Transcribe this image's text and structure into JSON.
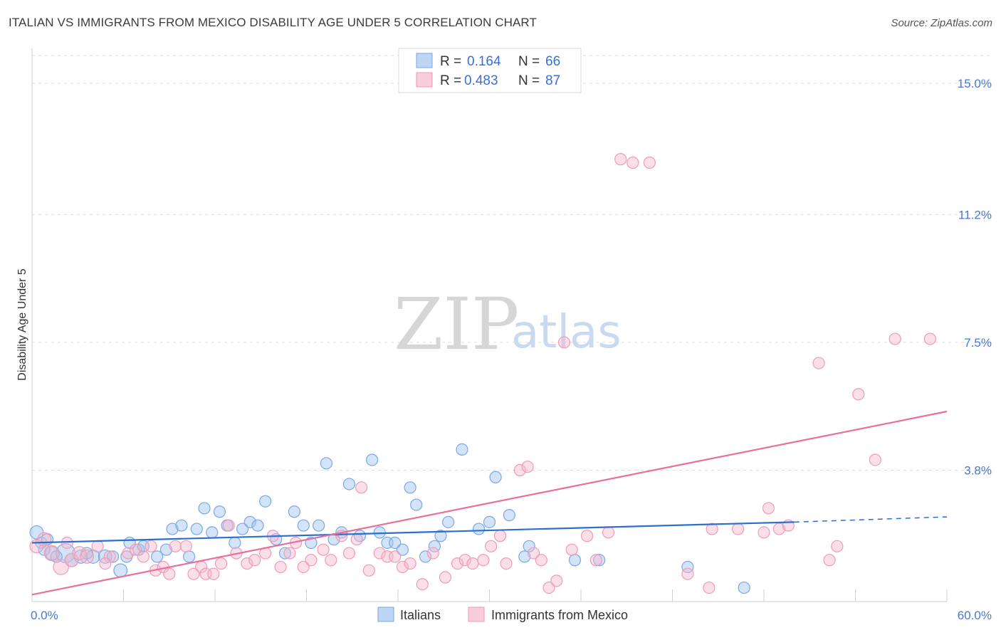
{
  "chart_data": {
    "type": "scatter",
    "title": "ITALIAN VS IMMIGRANTS FROM MEXICO DISABILITY AGE UNDER 5 CORRELATION CHART",
    "source": "Source: ZipAtlas.com",
    "xlabel": "",
    "ylabel": "Disability Age Under 5",
    "xlim": [
      0,
      60
    ],
    "ylim": [
      0,
      15.8
    ],
    "x_tick_labels": [
      {
        "value": 0,
        "label": "0.0%"
      },
      {
        "value": 60,
        "label": "60.0%"
      }
    ],
    "y_tick_labels": [
      {
        "value": 3.8,
        "label": "3.8%"
      },
      {
        "value": 7.5,
        "label": "7.5%"
      },
      {
        "value": 11.2,
        "label": "11.2%"
      },
      {
        "value": 15.0,
        "label": "15.0%"
      }
    ],
    "grid": true,
    "watermark": {
      "zip": "ZIP",
      "atlas": "atlas"
    },
    "legend": {
      "placement": "top-center",
      "rows": [
        {
          "r_label": "R =",
          "r_value": "0.164",
          "n_label": "N =",
          "n_value": "66"
        },
        {
          "r_label": "R =",
          "r_value": "0.483",
          "n_label": "N =",
          "n_value": "87"
        }
      ]
    },
    "bottom_legend": [
      "Italians",
      "Immigrants from Mexico"
    ],
    "series": [
      {
        "name": "Italians",
        "color": "#7aa7e6",
        "fill": "rgba(160,196,240,0.45)",
        "line_color": "#2b6fd0",
        "trend": {
          "x0": 0,
          "y0": 1.7,
          "x1": 50,
          "y1": 2.3,
          "dash_to_x": 60,
          "dash_to_y": 2.45
        },
        "points": [
          [
            0.3,
            2.0,
            14
          ],
          [
            0.6,
            1.7,
            12
          ],
          [
            1.0,
            1.8,
            12
          ],
          [
            1.3,
            1.4,
            14
          ],
          [
            2.2,
            1.4,
            20
          ],
          [
            2.6,
            1.2,
            14
          ],
          [
            3.2,
            1.3,
            14
          ],
          [
            4.0,
            1.3,
            14
          ],
          [
            4.8,
            1.3,
            14
          ],
          [
            5.3,
            1.3,
            12
          ],
          [
            5.8,
            0.9,
            14
          ],
          [
            6.2,
            1.3,
            12
          ],
          [
            6.4,
            1.7,
            12
          ],
          [
            7.0,
            1.5,
            12
          ],
          [
            7.3,
            1.6,
            12
          ],
          [
            8.2,
            1.3,
            12
          ],
          [
            8.8,
            1.5,
            12
          ],
          [
            9.2,
            2.1,
            12
          ],
          [
            9.8,
            2.2,
            12
          ],
          [
            10.3,
            1.3,
            12
          ],
          [
            10.8,
            2.1,
            12
          ],
          [
            11.3,
            2.7,
            12
          ],
          [
            11.8,
            2.0,
            12
          ],
          [
            12.3,
            2.6,
            12
          ],
          [
            12.8,
            2.2,
            12
          ],
          [
            13.3,
            1.7,
            12
          ],
          [
            13.8,
            2.1,
            12
          ],
          [
            14.3,
            2.3,
            12
          ],
          [
            14.8,
            2.2,
            12
          ],
          [
            15.3,
            2.9,
            12
          ],
          [
            16.0,
            1.8,
            12
          ],
          [
            16.6,
            1.4,
            12
          ],
          [
            17.2,
            2.6,
            12
          ],
          [
            17.8,
            2.2,
            12
          ],
          [
            18.3,
            1.7,
            12
          ],
          [
            18.8,
            2.2,
            12
          ],
          [
            19.3,
            4.0,
            12
          ],
          [
            19.8,
            1.8,
            12
          ],
          [
            20.3,
            2.0,
            12
          ],
          [
            20.8,
            3.4,
            12
          ],
          [
            21.5,
            1.9,
            12
          ],
          [
            22.3,
            4.1,
            12
          ],
          [
            22.8,
            2.0,
            12
          ],
          [
            23.3,
            1.7,
            12
          ],
          [
            23.8,
            1.7,
            12
          ],
          [
            24.3,
            1.5,
            12
          ],
          [
            24.8,
            3.3,
            12
          ],
          [
            25.2,
            2.8,
            12
          ],
          [
            25.8,
            1.3,
            12
          ],
          [
            26.4,
            1.6,
            12
          ],
          [
            26.8,
            1.9,
            12
          ],
          [
            27.3,
            2.3,
            12
          ],
          [
            28.2,
            4.4,
            12
          ],
          [
            29.3,
            2.1,
            12
          ],
          [
            30.0,
            2.3,
            12
          ],
          [
            30.4,
            3.6,
            12
          ],
          [
            31.3,
            2.5,
            12
          ],
          [
            32.3,
            1.3,
            12
          ],
          [
            32.6,
            1.6,
            12
          ],
          [
            35.6,
            1.2,
            12
          ],
          [
            37.2,
            1.2,
            12
          ],
          [
            43.0,
            1.0,
            12
          ],
          [
            46.7,
            0.4,
            12
          ],
          [
            0.8,
            1.5,
            12
          ],
          [
            1.6,
            1.3,
            12
          ],
          [
            3.6,
            1.4,
            12
          ]
        ]
      },
      {
        "name": "Immigrants from Mexico",
        "color": "#ee9cb5",
        "fill": "rgba(246,183,203,0.45)",
        "line_color": "#e8709a",
        "trend": {
          "x0": 0,
          "y0": 0.2,
          "x1": 60,
          "y1": 5.5
        },
        "points": [
          [
            0.3,
            1.6,
            14
          ],
          [
            0.8,
            1.8,
            14
          ],
          [
            1.3,
            1.4,
            16
          ],
          [
            1.9,
            1.0,
            16
          ],
          [
            2.6,
            1.2,
            14
          ],
          [
            3.1,
            1.4,
            14
          ],
          [
            3.6,
            1.3,
            14
          ],
          [
            4.3,
            1.6,
            12
          ],
          [
            5.1,
            1.3,
            12
          ],
          [
            6.3,
            1.4,
            12
          ],
          [
            6.8,
            1.5,
            12
          ],
          [
            7.3,
            1.3,
            12
          ],
          [
            7.8,
            1.6,
            12
          ],
          [
            8.1,
            0.9,
            12
          ],
          [
            8.6,
            1.0,
            12
          ],
          [
            9.0,
            0.8,
            12
          ],
          [
            9.4,
            1.6,
            12
          ],
          [
            10.1,
            1.6,
            12
          ],
          [
            10.6,
            0.8,
            12
          ],
          [
            11.1,
            1.0,
            12
          ],
          [
            11.4,
            0.8,
            12
          ],
          [
            11.9,
            0.8,
            12
          ],
          [
            12.4,
            1.1,
            12
          ],
          [
            12.9,
            2.2,
            12
          ],
          [
            13.4,
            1.4,
            12
          ],
          [
            14.1,
            1.1,
            12
          ],
          [
            14.6,
            1.2,
            12
          ],
          [
            15.3,
            1.4,
            12
          ],
          [
            15.8,
            1.9,
            12
          ],
          [
            16.3,
            1.0,
            12
          ],
          [
            16.9,
            1.4,
            12
          ],
          [
            17.3,
            1.7,
            12
          ],
          [
            17.8,
            1.0,
            12
          ],
          [
            18.3,
            1.2,
            12
          ],
          [
            19.1,
            1.5,
            12
          ],
          [
            19.6,
            1.2,
            12
          ],
          [
            20.3,
            1.9,
            12
          ],
          [
            20.8,
            1.4,
            12
          ],
          [
            21.3,
            1.8,
            12
          ],
          [
            21.6,
            3.3,
            12
          ],
          [
            22.1,
            0.9,
            12
          ],
          [
            22.8,
            1.4,
            12
          ],
          [
            23.3,
            1.3,
            12
          ],
          [
            23.8,
            1.3,
            12
          ],
          [
            24.3,
            1.0,
            12
          ],
          [
            24.8,
            1.1,
            12
          ],
          [
            25.6,
            0.5,
            12
          ],
          [
            26.3,
            1.4,
            12
          ],
          [
            27.1,
            0.7,
            12
          ],
          [
            27.9,
            1.1,
            12
          ],
          [
            28.4,
            1.2,
            12
          ],
          [
            28.9,
            1.1,
            12
          ],
          [
            29.6,
            1.2,
            12
          ],
          [
            30.1,
            1.6,
            12
          ],
          [
            30.7,
            1.9,
            12
          ],
          [
            31.1,
            1.1,
            12
          ],
          [
            32.0,
            3.8,
            12
          ],
          [
            32.5,
            3.9,
            12
          ],
          [
            32.9,
            1.4,
            12
          ],
          [
            33.4,
            1.2,
            12
          ],
          [
            33.9,
            0.4,
            12
          ],
          [
            34.4,
            0.6,
            12
          ],
          [
            34.9,
            7.5,
            12
          ],
          [
            35.4,
            1.5,
            12
          ],
          [
            36.4,
            1.9,
            12
          ],
          [
            37.0,
            1.2,
            12
          ],
          [
            37.8,
            2.0,
            12
          ],
          [
            38.6,
            12.8,
            12
          ],
          [
            39.4,
            12.7,
            12
          ],
          [
            40.5,
            12.7,
            12
          ],
          [
            43.0,
            0.8,
            12
          ],
          [
            44.4,
            0.4,
            12
          ],
          [
            44.6,
            2.1,
            12
          ],
          [
            46.3,
            2.1,
            12
          ],
          [
            48.0,
            2.0,
            12
          ],
          [
            48.3,
            2.7,
            12
          ],
          [
            49.0,
            2.1,
            12
          ],
          [
            49.6,
            2.2,
            12
          ],
          [
            51.6,
            6.9,
            12
          ],
          [
            52.3,
            1.2,
            12
          ],
          [
            52.8,
            1.6,
            12
          ],
          [
            54.2,
            6.0,
            12
          ],
          [
            55.3,
            4.1,
            12
          ],
          [
            56.6,
            7.6,
            12
          ],
          [
            58.9,
            7.6,
            12
          ],
          [
            2.3,
            1.7,
            12
          ],
          [
            4.8,
            1.1,
            12
          ]
        ]
      }
    ]
  }
}
